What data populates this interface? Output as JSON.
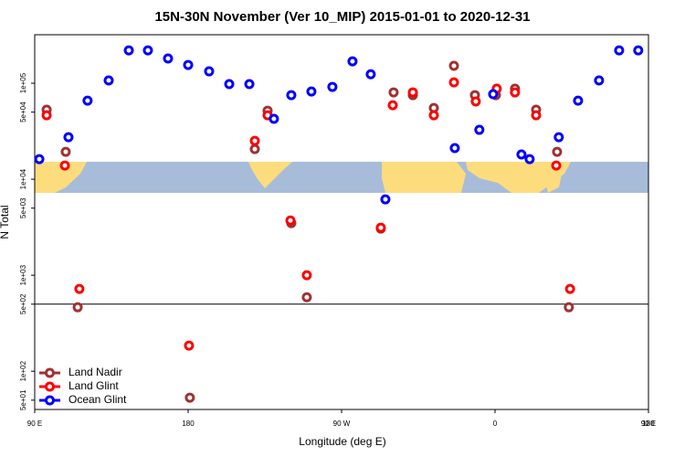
{
  "chart_data": {
    "type": "scatter",
    "title": "15N-30N November (Ver 10_MIP)   2015-01-01 to 2020-12-31",
    "x_label": "Longitude (deg E)",
    "y_label": "N Total",
    "xlim": [
      90,
      450
    ],
    "xticks": [
      {
        "value": 90,
        "label": "90 E"
      },
      {
        "value": 180,
        "label": "180"
      },
      {
        "value": 270,
        "label": "90 W"
      },
      {
        "value": 360,
        "label": "0"
      },
      {
        "value": 450,
        "label": "90 E"
      },
      {
        "value": 540,
        "label": "180"
      }
    ],
    "ylim": [
      40,
      320000
    ],
    "log_y": true,
    "yticks": [
      {
        "value": 50,
        "label": "5e+01"
      },
      {
        "value": 100,
        "label": "1e+02"
      },
      {
        "value": 500,
        "label": "5e+02"
      },
      {
        "value": 1000,
        "label": "1e+03"
      },
      {
        "value": 5000,
        "label": "5e+03"
      },
      {
        "value": 10000,
        "label": "1e+04"
      },
      {
        "value": 50000,
        "label": "5e+04"
      },
      {
        "value": 100000,
        "label": "1e+05"
      }
    ],
    "hline": 500,
    "legend": "bottom-left",
    "series": [
      {
        "name": "Land Nadir",
        "color": "#a03232",
        "x": [
          97,
          108.2,
          115.2,
          181,
          219.1,
          226.6,
          240.5,
          249.6,
          293,
          300.5,
          311.8,
          324.1,
          335.9,
          348.2,
          360.5,
          371.7,
          384.1,
          396.4,
          403.3
        ],
        "values": [
          53000,
          19300,
          464,
          53,
          20600,
          51800,
          3490,
          590,
          3060,
          80300,
          75200,
          55300,
          152000,
          75200,
          75200,
          87700,
          53000,
          19300,
          464
        ]
      },
      {
        "name": "Land Glint",
        "color": "#ff0000",
        "x": [
          97,
          107.7,
          116.2,
          180.5,
          219.1,
          226.6,
          240,
          249.6,
          293,
          300,
          311.8,
          324.1,
          335.9,
          348.7,
          361,
          371.7,
          384.1,
          395.9,
          404
        ],
        "values": [
          46400,
          13900,
          720,
          185,
          25100,
          46400,
          3720,
          1000,
          3130,
          59000,
          80300,
          46400,
          102000,
          64600,
          87700,
          80300,
          46400,
          13900,
          720
        ]
      },
      {
        "name": "Ocean Glint",
        "color": "#0000ff",
        "x": [
          92.7,
          109.8,
          121,
          133.4,
          145.2,
          156.4,
          168.2,
          180,
          192.3,
          204.1,
          215.9,
          230.3,
          240.5,
          252.3,
          264.6,
          276.4,
          287.1,
          295.7,
          336.4,
          350.8,
          358.9,
          375.5,
          380.3,
          397.4,
          408.7,
          421,
          432.8,
          444
        ],
        "values": [
          16200,
          27400,
          65900,
          107000,
          220000,
          220000,
          181000,
          155000,
          133000,
          98000,
          98000,
          42600,
          75200,
          82000,
          91600,
          169000,
          124000,
          6170,
          21100,
          32700,
          76900,
          18100,
          16200,
          27400,
          65900,
          107000,
          220000,
          220000
        ]
      }
    ]
  }
}
